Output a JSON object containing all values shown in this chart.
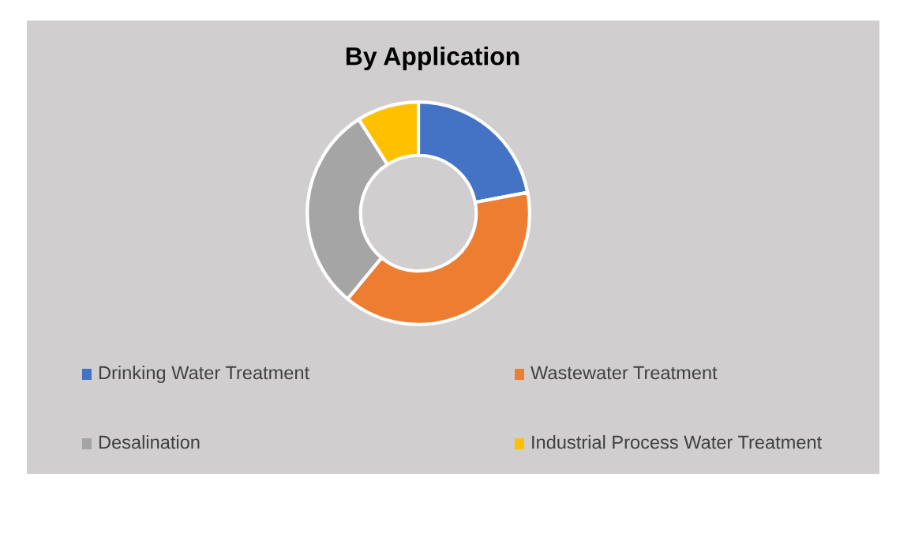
{
  "chart_data": {
    "type": "donut",
    "title": "By Application",
    "categories": [
      "Drinking Water Treatment",
      "Wastewater Treatment",
      "Desalination",
      "Industrial Process Water Treatment"
    ],
    "values": [
      22,
      39,
      30,
      9
    ],
    "colors": [
      "#4472c4",
      "#ed7d31",
      "#a5a5a5",
      "#ffc000"
    ],
    "legend": "bottom"
  }
}
